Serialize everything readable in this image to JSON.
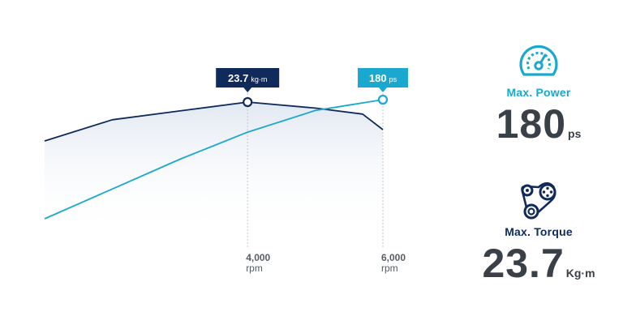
{
  "chart_data": {
    "type": "line",
    "x": [
      2000,
      3000,
      4000,
      5000,
      5700,
      6000
    ],
    "xlim": [
      1000,
      6000
    ],
    "series": [
      {
        "role": "torque",
        "color": "#102a5c",
        "x": [
          1000,
          2000,
          3000,
          4000,
          5000,
          5700,
          6000
        ],
        "values": [
          22.6,
          23.2,
          23.45,
          23.7,
          23.53,
          23.36,
          22.92
        ]
      },
      {
        "role": "power",
        "color": "#1aa8cf",
        "x": [
          1000,
          2000,
          3000,
          4000,
          5000,
          5500,
          6000
        ],
        "values": [
          92,
          114,
          136,
          156,
          172,
          176,
          180
        ]
      }
    ],
    "xticks": [
      {
        "value": "4,000",
        "unit": "rpm",
        "x": 4000
      },
      {
        "value": "6,000",
        "unit": "rpm",
        "x": 6000
      }
    ],
    "callouts": [
      {
        "id": "torque",
        "value": "23.7",
        "unit": "kg·m",
        "x": 4000,
        "series": 0,
        "color": "#102a5c"
      },
      {
        "id": "power",
        "value": "180",
        "unit": "ps",
        "x": 6000,
        "series": 1,
        "color": "#1aa8cf"
      }
    ]
  },
  "specs": {
    "power": {
      "label": "Max. Power",
      "value": "180",
      "unit": "ps",
      "icon": "speedometer-icon",
      "color": "#18a7cf"
    },
    "torque": {
      "label": "Max. Torque",
      "value": "23.7",
      "unit": "Kg·m",
      "icon": "belt-pulley-icon",
      "color": "#102a5c"
    }
  }
}
